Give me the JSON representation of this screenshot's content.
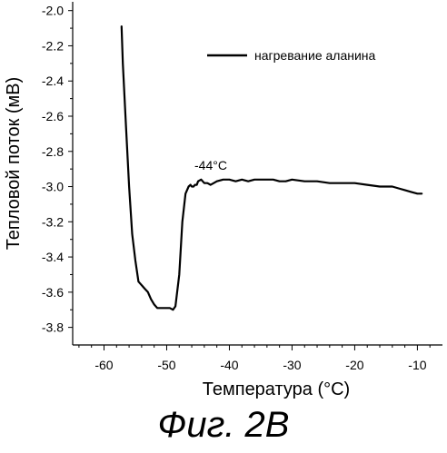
{
  "chart_data": {
    "type": "line",
    "xlabel": "Температура (°С)",
    "ylabel": "Тепловой поток (мВ)",
    "xlim": [
      -65,
      -6
    ],
    "ylim": [
      -3.9,
      -1.95
    ],
    "x_ticks": [
      -60,
      -50,
      -40,
      -30,
      -20,
      -10
    ],
    "y_ticks": [
      -2.0,
      -2.2,
      -2.4,
      -2.6,
      -2.8,
      -3.0,
      -3.2,
      -3.4,
      -3.6,
      -3.8
    ],
    "grid": false,
    "legend_position": "top-right",
    "series": [
      {
        "name": "нагревание аланина",
        "color": "#000000",
        "x": [
          -57.2,
          -57.0,
          -56.5,
          -56.0,
          -55.5,
          -55.0,
          -54.5,
          -54.0,
          -53.5,
          -53.0,
          -52.5,
          -52.0,
          -51.5,
          -51.0,
          -50.5,
          -50.0,
          -49.5,
          -49.0,
          -48.6,
          -48.0,
          -47.5,
          -47.0,
          -46.5,
          -46.2,
          -46.0,
          -45.7,
          -45.5,
          -45.2,
          -45.0,
          -44.5,
          -44.0,
          -43.5,
          -43.0,
          -42.5,
          -42.0,
          -41.0,
          -40.0,
          -39.0,
          -38.0,
          -37.0,
          -36.0,
          -35.0,
          -34.0,
          -33.0,
          -32.0,
          -31.0,
          -30.0,
          -28.0,
          -26.0,
          -24.0,
          -22.0,
          -20.0,
          -18.0,
          -16.0,
          -14.0,
          -13.0,
          -12.0,
          -11.0,
          -10.0,
          -9.5,
          -9.3
        ],
        "y": [
          -2.09,
          -2.3,
          -2.65,
          -3.0,
          -3.27,
          -3.42,
          -3.54,
          -3.56,
          -3.58,
          -3.6,
          -3.64,
          -3.67,
          -3.69,
          -3.69,
          -3.69,
          -3.69,
          -3.69,
          -3.7,
          -3.68,
          -3.5,
          -3.2,
          -3.04,
          -3.0,
          -2.99,
          -3.0,
          -3.0,
          -2.99,
          -2.99,
          -2.97,
          -2.96,
          -2.98,
          -2.98,
          -2.99,
          -2.98,
          -2.97,
          -2.96,
          -2.96,
          -2.97,
          -2.96,
          -2.97,
          -2.96,
          -2.96,
          -2.96,
          -2.96,
          -2.97,
          -2.97,
          -2.96,
          -2.97,
          -2.97,
          -2.98,
          -2.98,
          -2.98,
          -2.99,
          -3.0,
          -3.0,
          -3.01,
          -3.02,
          -3.03,
          -3.04,
          -3.04,
          -3.04
        ]
      }
    ],
    "annotations": [
      {
        "text": "-44°C",
        "x": -45.5,
        "y": -2.92
      }
    ]
  },
  "figure_caption": "Фиг. 2В"
}
